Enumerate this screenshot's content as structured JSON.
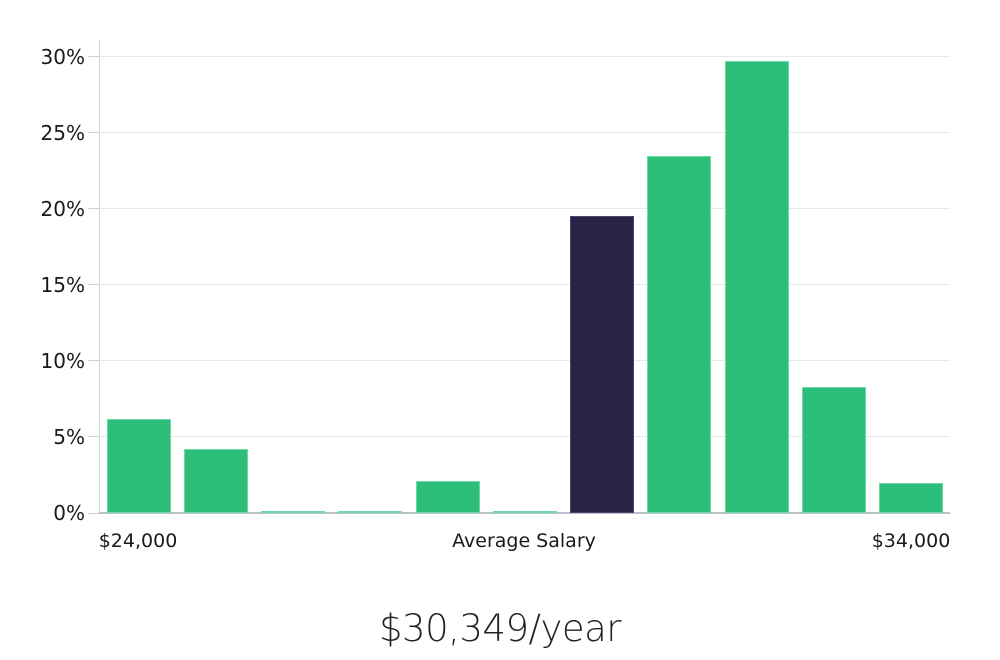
{
  "chart_data": {
    "type": "bar",
    "title": "$30,349/year",
    "values": [
      6.2,
      4.2,
      0.1,
      0.1,
      2.1,
      0.1,
      19.5,
      23.5,
      29.7,
      8.3,
      2.0
    ],
    "highlight_index": 6,
    "yticks": [
      0,
      5,
      10,
      15,
      20,
      25,
      30
    ],
    "ytick_labels": [
      "0%",
      "5%",
      "10%",
      "15%",
      "20%",
      "25%",
      "30%"
    ],
    "ylim": [
      0,
      31.1
    ],
    "xticks": [
      {
        "label": "$24,000",
        "position": "first-bin"
      },
      {
        "label": "Average Salary",
        "position": "center"
      },
      {
        "label": "$34,000",
        "position": "last-bin"
      }
    ],
    "grid": "horizontal-only",
    "legend": "none",
    "colors": {
      "bar": "#2dbe7a",
      "bar_edge": "#6cd9a6",
      "highlight_bar": "#262345",
      "highlight_bar_edge": "#4a4573",
      "gridline": "#e9e9e9",
      "x_axis": "#bcc2c8",
      "y_axis": "#d6d8da",
      "tick": "#cdd0d2",
      "text": "#1a1a1a"
    }
  }
}
